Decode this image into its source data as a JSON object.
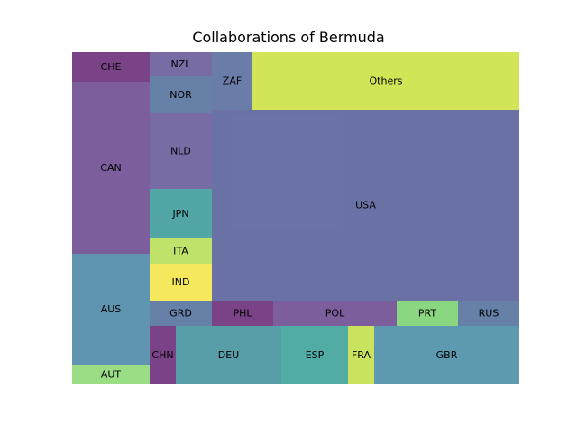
{
  "chart_data": {
    "type": "treemap",
    "title": "Collaborations of Bermuda",
    "cells": [
      {
        "label": "CHE",
        "value": 2,
        "color": "#6b2d7a"
      },
      {
        "label": "CAN",
        "value": 11.1,
        "color": "#6e4d91"
      },
      {
        "label": "AUS",
        "value": 7.1,
        "color": "#4f8aa8"
      },
      {
        "label": "AUT",
        "value": 1.3,
        "color": "#8fd977"
      },
      {
        "label": "NZL",
        "value": 1,
        "color": "#6a5c9a"
      },
      {
        "label": "NOR",
        "value": 1.6,
        "color": "#56729f"
      },
      {
        "label": "NLD",
        "value": 3.1,
        "color": "#6a5c9a"
      },
      {
        "label": "JPN",
        "value": 2.1,
        "color": "#3f9c9c"
      },
      {
        "label": "ITA",
        "value": 1.1,
        "color": "#b8df5a"
      },
      {
        "label": "IND",
        "value": 1.6,
        "color": "#f4e54a"
      },
      {
        "label": "GRD",
        "value": 1,
        "color": "#56729f"
      },
      {
        "label": "ZAF",
        "value": 1.6,
        "color": "#5a6e9e"
      },
      {
        "label": "Others",
        "value": 16.5,
        "color": "#cde244"
      },
      {
        "label": "USA",
        "value": 54.5,
        "color": "#5a629b"
      },
      {
        "label": "PHL",
        "value": 1.1,
        "color": "#6b2d7a"
      },
      {
        "label": "POL",
        "value": 2.3,
        "color": "#6e4d91"
      },
      {
        "label": "PRT",
        "value": 1.1,
        "color": "#7dd374"
      },
      {
        "label": "RUS",
        "value": 1.1,
        "color": "#56729f"
      },
      {
        "label": "CHN",
        "value": 1,
        "color": "#6b2d7a"
      },
      {
        "label": "DEU",
        "value": 3.9,
        "color": "#46949f"
      },
      {
        "label": "ESP",
        "value": 2.5,
        "color": "#3fa39c"
      },
      {
        "label": "FRA",
        "value": 1,
        "color": "#c4e04c"
      },
      {
        "label": "GBR",
        "value": 5.6,
        "color": "#4b8fa6"
      }
    ]
  }
}
